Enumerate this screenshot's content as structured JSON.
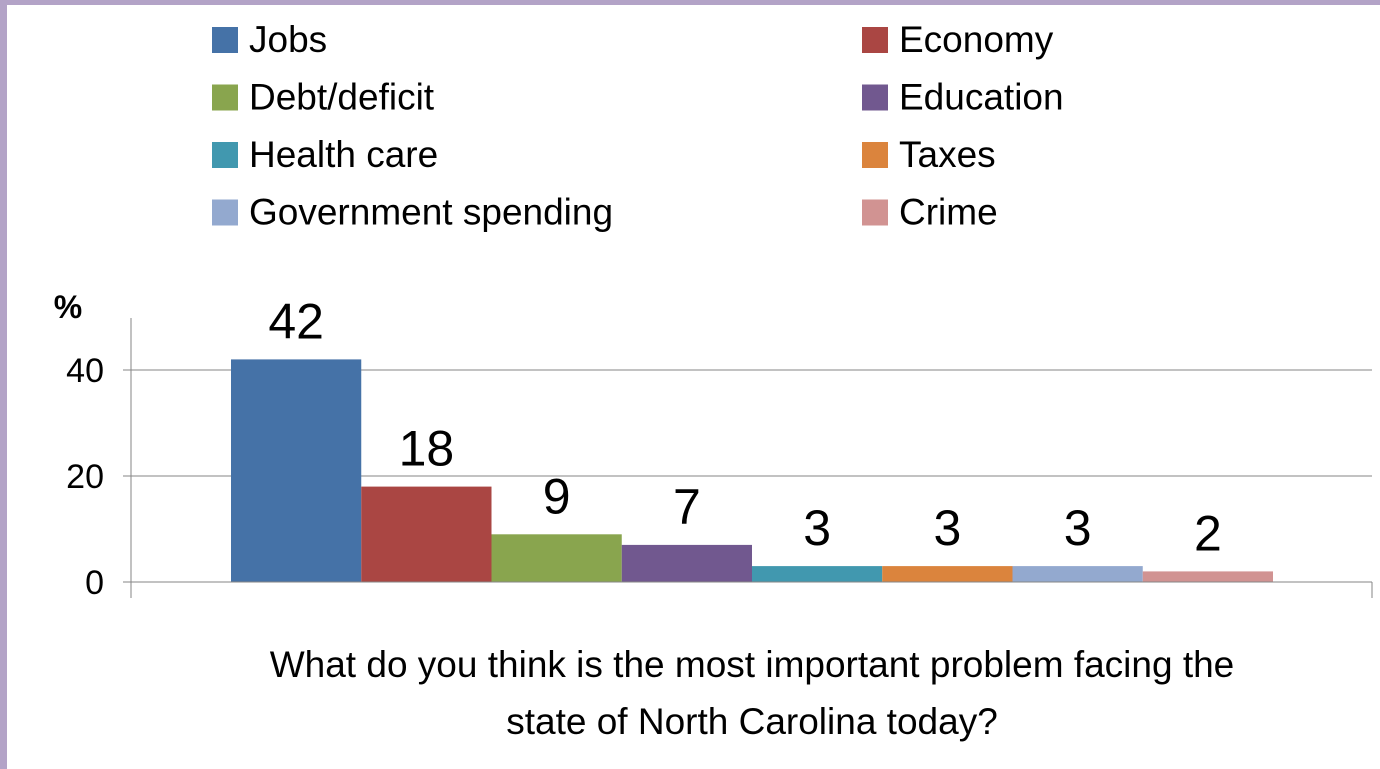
{
  "chart_data": {
    "type": "bar",
    "ylabel": "%",
    "xlabel": "What do you think is the most important problem facing the state of North Carolina today?",
    "xlabel_lines": [
      "What do you think is the most important problem facing the",
      "state of North Carolina today?"
    ],
    "ylim": [
      0,
      50
    ],
    "yticks": [
      0,
      20,
      40
    ],
    "grid": true,
    "legend_position": "top",
    "series": [
      {
        "name": "Jobs",
        "value": 42,
        "color": "#4572a7"
      },
      {
        "name": "Economy",
        "value": 18,
        "color": "#aa4643"
      },
      {
        "name": "Debt/deficit",
        "value": 9,
        "color": "#89a54e"
      },
      {
        "name": "Education",
        "value": 7,
        "color": "#71588f"
      },
      {
        "name": "Health care",
        "value": 3,
        "color": "#4198af"
      },
      {
        "name": "Taxes",
        "value": 3,
        "color": "#db843d"
      },
      {
        "name": "Government spending",
        "value": 3,
        "color": "#93a9cf"
      },
      {
        "name": "Crime",
        "value": 2,
        "color": "#d19392"
      }
    ]
  },
  "colors": {
    "frame": "#b3a3c7",
    "gridline": "#868686",
    "axis": "#868686"
  }
}
